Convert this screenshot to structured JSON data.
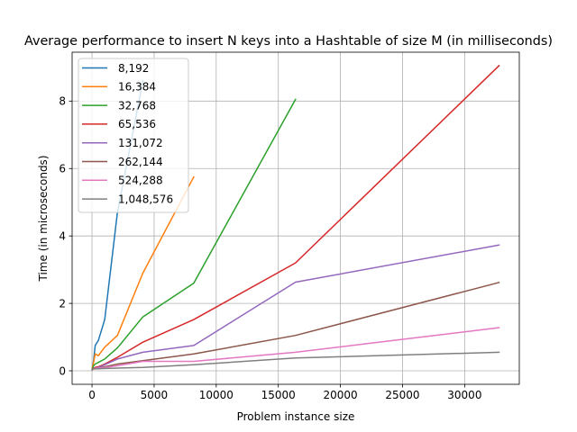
{
  "chart_data": {
    "type": "line",
    "title": "Average performance to insert N keys into a Hashtable of size M (in milliseconds)",
    "xlabel": "Problem instance size",
    "ylabel": "Time (in microseconds)",
    "xlim": [
      -1600,
      34400
    ],
    "ylim": [
      -0.4,
      9.45
    ],
    "xticks": [
      0,
      5000,
      10000,
      15000,
      20000,
      25000,
      30000
    ],
    "yticks": [
      0,
      2,
      4,
      6,
      8
    ],
    "grid": true,
    "legend_position": "top-left",
    "series": [
      {
        "name": "8,192",
        "color": "#1f77b4",
        "x": [
          16,
          32,
          64,
          128,
          256,
          512,
          1024,
          2048,
          4096
        ],
        "y": [
          0.06,
          0.08,
          0.15,
          0.3,
          0.75,
          0.9,
          1.52,
          4.7,
          8.6
        ]
      },
      {
        "name": "16,384",
        "color": "#ff7f0e",
        "x": [
          16,
          32,
          64,
          128,
          256,
          512,
          1024,
          2048,
          4096,
          8192
        ],
        "y": [
          0.05,
          0.08,
          0.15,
          0.25,
          0.5,
          0.45,
          0.7,
          1.05,
          2.9,
          5.75
        ]
      },
      {
        "name": "32,768",
        "color": "#2ca02c",
        "x": [
          16,
          32,
          64,
          128,
          256,
          512,
          1024,
          2048,
          4096,
          8192,
          16384
        ],
        "y": [
          0.04,
          0.06,
          0.1,
          0.15,
          0.2,
          0.25,
          0.35,
          0.68,
          1.6,
          2.6,
          8.05
        ]
      },
      {
        "name": "65,536",
        "color": "#d62728",
        "x": [
          16,
          32,
          64,
          128,
          256,
          512,
          1024,
          2048,
          4096,
          8192,
          16384,
          32768
        ],
        "y": [
          0.04,
          0.05,
          0.06,
          0.08,
          0.1,
          0.12,
          0.2,
          0.4,
          0.85,
          1.52,
          3.2,
          9.05
        ]
      },
      {
        "name": "131,072",
        "color": "#9467bd",
        "x": [
          16,
          32,
          64,
          128,
          256,
          512,
          1024,
          2048,
          4096,
          8192,
          16384,
          32768
        ],
        "y": [
          0.03,
          0.04,
          0.05,
          0.06,
          0.08,
          0.1,
          0.18,
          0.35,
          0.55,
          0.75,
          2.63,
          3.73
        ]
      },
      {
        "name": "262,144",
        "color": "#8c564b",
        "x": [
          16,
          32,
          64,
          128,
          256,
          512,
          1024,
          2048,
          4096,
          8192,
          16384,
          32768
        ],
        "y": [
          0.03,
          0.04,
          0.05,
          0.06,
          0.07,
          0.08,
          0.12,
          0.2,
          0.3,
          0.5,
          1.05,
          2.62
        ]
      },
      {
        "name": "524,288",
        "color": "#e377c2",
        "x": [
          16,
          32,
          64,
          128,
          256,
          512,
          1024,
          2048,
          4096,
          8192,
          16384,
          32768
        ],
        "y": [
          0.03,
          0.04,
          0.05,
          0.06,
          0.07,
          0.08,
          0.1,
          0.15,
          0.28,
          0.28,
          0.55,
          1.28
        ]
      },
      {
        "name": "1,048,576",
        "color": "#7f7f7f",
        "x": [
          16,
          32,
          64,
          128,
          256,
          512,
          1024,
          2048,
          4096,
          8192,
          16384,
          32768
        ],
        "y": [
          0.03,
          0.04,
          0.05,
          0.05,
          0.06,
          0.06,
          0.07,
          0.08,
          0.1,
          0.18,
          0.38,
          0.55
        ]
      }
    ]
  }
}
